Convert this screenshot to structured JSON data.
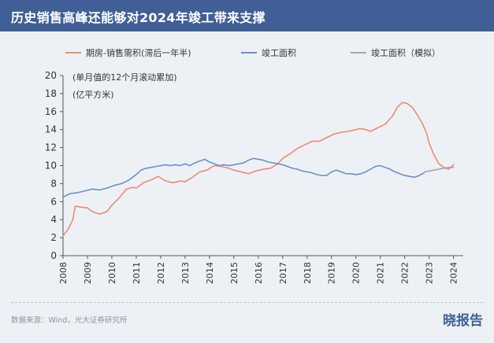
{
  "header": {
    "title": "历史销售高峰还能够对2024年竣工带来支撑"
  },
  "footer": {
    "source": "数据来源：Wind，光大证券研究所",
    "brand": "晓报告"
  },
  "chart_data": {
    "type": "line",
    "title": "历史销售高峰还能够对2024年竣工带来支撑",
    "annotation": [
      "(单月值的12个月滚动累加)",
      "(亿平方米)"
    ],
    "xlabel": "",
    "ylabel": "",
    "ylim": [
      0,
      20
    ],
    "yticks": [
      0,
      2,
      4,
      6,
      8,
      10,
      12,
      14,
      16,
      18,
      20
    ],
    "xlim": [
      2008,
      2024.4
    ],
    "xticks": [
      "2008",
      "2009",
      "2010",
      "2011",
      "2012",
      "2013",
      "2014",
      "2015",
      "2016",
      "2017",
      "2018",
      "2019",
      "2020",
      "2021",
      "2022",
      "2023",
      "2024"
    ],
    "grid": false,
    "legend_position": "top",
    "series": [
      {
        "name": "期房-销售需积(滞后一年半)",
        "color": "#ee8a72",
        "x": [
          2008.0,
          2008.2,
          2008.4,
          2008.5,
          2008.7,
          2009.0,
          2009.2,
          2009.5,
          2009.8,
          2010.0,
          2010.3,
          2010.6,
          2010.9,
          2011.0,
          2011.3,
          2011.6,
          2011.9,
          2012.2,
          2012.5,
          2012.8,
          2013.0,
          2013.3,
          2013.6,
          2013.9,
          2014.2,
          2014.5,
          2014.8,
          2015.0,
          2015.3,
          2015.6,
          2015.9,
          2016.2,
          2016.5,
          2016.8,
          2017.0,
          2017.3,
          2017.6,
          2017.9,
          2018.2,
          2018.5,
          2018.8,
          2019.1,
          2019.4,
          2019.7,
          2020.0,
          2020.2,
          2020.4,
          2020.6,
          2020.9,
          2021.2,
          2021.5,
          2021.7,
          2021.9,
          2022.1,
          2022.3,
          2022.5,
          2022.7,
          2022.9,
          2023.0,
          2023.2,
          2023.4,
          2023.6,
          2023.8,
          2024.0
        ],
        "values": [
          2.2,
          2.9,
          4.0,
          5.5,
          5.4,
          5.3,
          4.9,
          4.6,
          4.9,
          5.6,
          6.4,
          7.4,
          7.6,
          7.5,
          8.1,
          8.4,
          8.8,
          8.3,
          8.1,
          8.3,
          8.2,
          8.7,
          9.3,
          9.5,
          10.0,
          9.9,
          9.7,
          9.5,
          9.3,
          9.1,
          9.4,
          9.6,
          9.7,
          10.2,
          10.8,
          11.3,
          11.9,
          12.3,
          12.7,
          12.7,
          13.1,
          13.5,
          13.7,
          13.8,
          14.0,
          14.1,
          14.0,
          13.8,
          14.2,
          14.6,
          15.5,
          16.5,
          17.0,
          16.9,
          16.5,
          15.7,
          14.8,
          13.6,
          12.5,
          11.2,
          10.2,
          9.8,
          9.6,
          10.1
        ]
      },
      {
        "name": "竣工面积",
        "color": "#6d8fc4",
        "x": [
          2008.0,
          2008.3,
          2008.6,
          2008.9,
          2009.2,
          2009.5,
          2009.8,
          2010.1,
          2010.4,
          2010.7,
          2011.0,
          2011.2,
          2011.4,
          2011.6,
          2011.8,
          2012.0,
          2012.2,
          2012.4,
          2012.6,
          2012.8,
          2013.0,
          2013.2,
          2013.4,
          2013.6,
          2013.8,
          2014.0,
          2014.2,
          2014.4,
          2014.6,
          2014.8,
          2015.0,
          2015.2,
          2015.4,
          2015.6,
          2015.8,
          2016.0,
          2016.2,
          2016.4,
          2016.6,
          2016.8,
          2017.0,
          2017.2,
          2017.4,
          2017.6,
          2017.8,
          2018.0,
          2018.2,
          2018.4,
          2018.6,
          2018.8,
          2019.0,
          2019.2,
          2019.4,
          2019.6,
          2019.8,
          2020.0,
          2020.2,
          2020.4,
          2020.6,
          2020.8,
          2021.0,
          2021.2,
          2021.4,
          2021.6,
          2021.8,
          2022.0,
          2022.2,
          2022.4,
          2022.6,
          2022.8
        ],
        "values": [
          6.5,
          6.9,
          7.0,
          7.2,
          7.4,
          7.3,
          7.5,
          7.8,
          8.0,
          8.4,
          9.0,
          9.5,
          9.7,
          9.8,
          9.9,
          10.0,
          10.1,
          10.0,
          10.1,
          10.0,
          10.2,
          10.0,
          10.3,
          10.5,
          10.7,
          10.4,
          10.2,
          10.0,
          10.1,
          10.0,
          10.1,
          10.2,
          10.3,
          10.6,
          10.8,
          10.7,
          10.6,
          10.4,
          10.3,
          10.2,
          10.1,
          9.9,
          9.7,
          9.6,
          9.4,
          9.3,
          9.2,
          9.0,
          8.9,
          8.9,
          9.3,
          9.5,
          9.3,
          9.1,
          9.1,
          9.0,
          9.1,
          9.3,
          9.6,
          9.9,
          10.0,
          9.8,
          9.6,
          9.3,
          9.1,
          8.9,
          8.8,
          8.7,
          8.9,
          9.2
        ]
      },
      {
        "name": "竣工面积（模拟）",
        "color": "#a6a6a6",
        "x": [
          2022.8,
          2023.0,
          2023.2,
          2023.4,
          2023.6,
          2023.8,
          2024.0
        ],
        "values": [
          9.3,
          9.4,
          9.5,
          9.6,
          9.7,
          9.8,
          9.8
        ]
      }
    ]
  }
}
